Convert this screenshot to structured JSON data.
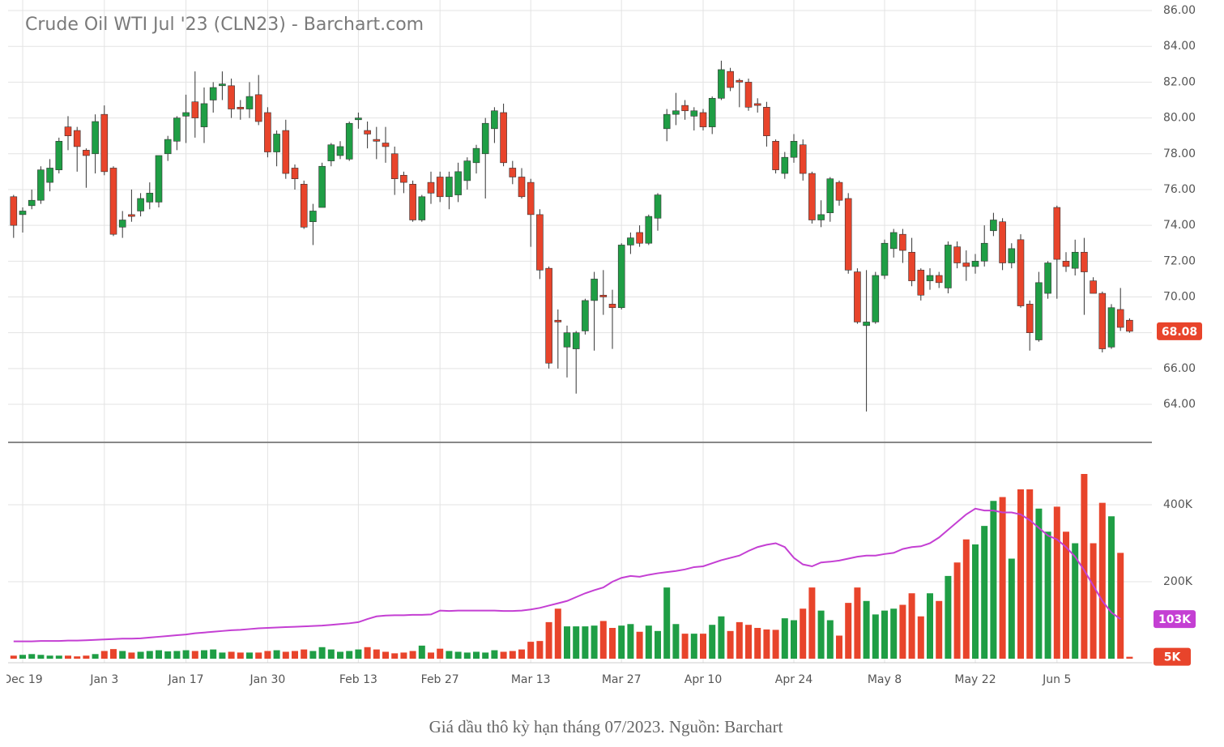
{
  "caption": "Giá dầu thô kỳ hạn tháng 07/2023. Nguồn: Barchart",
  "chart_data": [
    {
      "type": "candlestick",
      "title": "Crude Oil WTI Jul '23 (CLN23) - Barchart.com",
      "categories": [
        null,
        "Dec 19",
        null,
        null,
        null,
        null,
        null,
        null,
        null,
        null,
        "Jan 3",
        null,
        null,
        null,
        null,
        null,
        null,
        null,
        null,
        "Jan 17",
        null,
        null,
        null,
        null,
        null,
        null,
        null,
        null,
        "Jan 30",
        null,
        null,
        null,
        null,
        null,
        null,
        null,
        null,
        null,
        "Feb 13",
        null,
        null,
        null,
        null,
        null,
        null,
        null,
        null,
        "Feb 27",
        null,
        null,
        null,
        null,
        null,
        null,
        null,
        null,
        null,
        "Mar 13",
        null,
        null,
        null,
        null,
        null,
        null,
        null,
        null,
        null,
        "Mar 27",
        null,
        null,
        null,
        null,
        null,
        null,
        null,
        null,
        "Apr 10",
        null,
        null,
        null,
        null,
        null,
        null,
        null,
        null,
        null,
        "Apr 24",
        null,
        null,
        null,
        null,
        null,
        null,
        null,
        null,
        null,
        "May 8",
        null,
        null,
        null,
        null,
        null,
        null,
        null,
        null,
        null,
        "May 22",
        null,
        null,
        null,
        null,
        null,
        null,
        null,
        null,
        "Jun 5",
        null,
        null,
        null,
        null,
        null,
        null,
        null,
        null
      ],
      "open": [
        75.6,
        74.6,
        75.1,
        75.4,
        76.4,
        77.1,
        79.5,
        79.3,
        78.2,
        78.0,
        80.2,
        77.2,
        73.9,
        74.6,
        74.8,
        75.3,
        75.3,
        78.0,
        78.7,
        80.1,
        80.9,
        79.5,
        81.0,
        81.8,
        81.8,
        80.6,
        80.5,
        81.3,
        80.3,
        78.1,
        79.3,
        77.2,
        76.3,
        74.2,
        75.0,
        77.6,
        77.9,
        77.7,
        79.9,
        79.3,
        78.8,
        78.6,
        78.0,
        76.8,
        76.3,
        74.3,
        76.4,
        76.7,
        75.6,
        75.7,
        76.5,
        77.5,
        78.0,
        79.4,
        80.3,
        77.2,
        76.7,
        76.4,
        74.6,
        71.6,
        68.7,
        67.2,
        67.1,
        68.1,
        69.8,
        70.1,
        69.6,
        69.4,
        72.9,
        73.6,
        73.0,
        74.4,
        79.4,
        80.2,
        80.7,
        80.1,
        80.3,
        79.5,
        81.1,
        82.6,
        82.1,
        82.0,
        80.8,
        80.6,
        78.7,
        76.9,
        77.8,
        78.5,
        76.9,
        74.3,
        74.7,
        76.4,
        75.5,
        71.4,
        68.4,
        68.6,
        71.2,
        72.7,
        73.5,
        72.5,
        71.5,
        70.9,
        71.2,
        70.5,
        72.8,
        71.9,
        71.7,
        72.0,
        73.7,
        74.2,
        71.9,
        73.2,
        69.6,
        67.6,
        70.2,
        75.0,
        72.0,
        71.6,
        72.5,
        70.9,
        70.2,
        67.2,
        69.3,
        68.7
      ],
      "high": [
        75.7,
        75.0,
        76.0,
        77.3,
        77.7,
        78.9,
        80.1,
        79.5,
        78.3,
        80.2,
        80.7,
        77.3,
        74.8,
        76.0,
        75.8,
        76.4,
        77.9,
        79.0,
        80.1,
        81.3,
        82.6,
        81.7,
        82.0,
        82.6,
        82.2,
        81.0,
        82.0,
        82.4,
        80.6,
        79.3,
        79.9,
        77.4,
        76.5,
        75.2,
        77.5,
        78.6,
        78.7,
        79.8,
        80.3,
        79.8,
        79.5,
        79.5,
        78.4,
        77.0,
        76.5,
        75.7,
        77.0,
        77.0,
        77.0,
        77.5,
        77.8,
        78.5,
        80.0,
        80.6,
        80.8,
        77.6,
        77.2,
        76.6,
        74.9,
        71.7,
        69.3,
        68.4,
        68.1,
        69.9,
        71.4,
        71.5,
        70.4,
        73.0,
        73.6,
        74.0,
        74.6,
        75.8,
        80.5,
        81.4,
        81.0,
        80.6,
        80.5,
        81.2,
        83.2,
        82.8,
        82.2,
        82.2,
        81.1,
        80.9,
        78.8,
        78.1,
        79.1,
        78.8,
        77.0,
        75.4,
        76.7,
        76.5,
        75.8,
        71.6,
        71.5,
        71.4,
        73.2,
        73.8,
        73.8,
        73.3,
        71.6,
        71.6,
        71.4,
        73.1,
        73.1,
        72.6,
        72.4,
        74.0,
        74.7,
        74.4,
        73.0,
        73.5,
        69.8,
        71.4,
        72.0,
        75.1,
        72.5,
        73.2,
        73.3,
        71.1,
        70.3,
        69.6,
        70.5,
        68.8
      ],
      "low": [
        73.3,
        73.6,
        74.9,
        75.2,
        75.9,
        76.9,
        78.2,
        77.0,
        76.1,
        76.9,
        76.8,
        73.4,
        73.3,
        74.2,
        74.5,
        74.9,
        75.0,
        77.6,
        78.2,
        78.6,
        78.9,
        78.6,
        80.3,
        81.0,
        80.0,
        79.9,
        80.0,
        79.6,
        77.8,
        77.3,
        76.6,
        76.0,
        73.8,
        72.9,
        75.0,
        77.3,
        77.7,
        77.6,
        79.4,
        78.3,
        77.7,
        77.5,
        75.7,
        75.8,
        74.2,
        74.2,
        75.2,
        75.3,
        74.9,
        75.3,
        76.0,
        76.9,
        75.5,
        78.6,
        77.3,
        76.3,
        75.5,
        72.8,
        71.0,
        66.0,
        66.0,
        65.5,
        64.6,
        67.9,
        67.0,
        69.0,
        67.1,
        69.3,
        72.4,
        72.8,
        72.9,
        73.7,
        78.7,
        79.6,
        79.9,
        79.3,
        79.3,
        79.1,
        81.0,
        81.5,
        80.6,
        80.4,
        80.3,
        78.4,
        76.9,
        76.6,
        77.5,
        76.5,
        74.1,
        73.9,
        74.2,
        75.1,
        71.3,
        68.5,
        63.6,
        68.5,
        71.0,
        72.2,
        71.9,
        70.6,
        69.8,
        70.4,
        70.5,
        70.2,
        71.6,
        70.9,
        71.3,
        71.7,
        73.4,
        71.5,
        71.6,
        69.4,
        67.0,
        67.5,
        69.9,
        69.9,
        71.4,
        71.2,
        69.0,
        70.2,
        66.9,
        67.1,
        68.1,
        68.0
      ],
      "close": [
        74.0,
        74.8,
        75.4,
        77.1,
        77.2,
        78.7,
        79.0,
        78.4,
        77.9,
        79.8,
        77.0,
        73.5,
        74.3,
        74.5,
        75.5,
        75.8,
        77.9,
        78.8,
        80.0,
        80.3,
        80.0,
        80.8,
        81.7,
        81.9,
        80.5,
        80.5,
        81.2,
        79.8,
        78.1,
        79.1,
        76.9,
        76.6,
        73.9,
        74.8,
        77.3,
        78.5,
        78.4,
        79.7,
        80.0,
        79.1,
        78.7,
        78.4,
        76.6,
        76.4,
        74.3,
        75.6,
        75.8,
        75.6,
        76.7,
        77.0,
        77.6,
        78.3,
        79.7,
        80.4,
        77.5,
        76.7,
        75.6,
        74.6,
        71.5,
        66.3,
        68.6,
        68.0,
        68.0,
        69.8,
        71.0,
        70.0,
        69.4,
        72.9,
        73.3,
        73.0,
        74.5,
        75.7,
        80.2,
        80.4,
        80.4,
        80.4,
        79.5,
        81.1,
        82.7,
        81.7,
        82.0,
        80.6,
        80.7,
        79.0,
        77.1,
        77.8,
        78.7,
        76.9,
        74.3,
        74.6,
        76.6,
        75.4,
        71.5,
        68.6,
        68.6,
        71.2,
        73.0,
        73.6,
        72.6,
        70.9,
        70.1,
        71.2,
        70.8,
        72.9,
        71.9,
        71.7,
        72.0,
        73.0,
        74.3,
        71.9,
        72.7,
        69.5,
        68.0,
        70.8,
        71.9,
        72.1,
        71.7,
        72.5,
        71.4,
        70.2,
        67.1,
        69.4,
        68.3,
        68.08
      ],
      "up_color": "#1f9e45",
      "down_color": "#e8442b",
      "ylim": [
        61.92,
        86.59
      ],
      "yticks": [
        {
          "value": 64,
          "label": "64.00"
        },
        {
          "value": 66,
          "label": "66.00"
        },
        {
          "value": 68,
          "label": "68.00"
        },
        {
          "value": 70,
          "label": "70.00"
        },
        {
          "value": 72,
          "label": "72.00"
        },
        {
          "value": 74,
          "label": "74.00"
        },
        {
          "value": 76,
          "label": "76.00"
        },
        {
          "value": 78,
          "label": "78.00"
        },
        {
          "value": 80,
          "label": "80.00"
        },
        {
          "value": 82,
          "label": "82.00"
        },
        {
          "value": 84,
          "label": "84.00"
        },
        {
          "value": 86,
          "label": "86.00"
        }
      ],
      "grid": true
    },
    {
      "type": "volume",
      "series": [
        {
          "type": "bar",
          "values": [
            8,
            10,
            12,
            10,
            8,
            8,
            8,
            6,
            8,
            12,
            20,
            25,
            20,
            16,
            18,
            20,
            22,
            19,
            20,
            22,
            20,
            22,
            24,
            16,
            18,
            16,
            16,
            16,
            20,
            22,
            18,
            20,
            24,
            20,
            30,
            24,
            18,
            20,
            24,
            30,
            24,
            18,
            14,
            16,
            20,
            34,
            16,
            26,
            20,
            18,
            16,
            18,
            16,
            22,
            18,
            20,
            24,
            44,
            46,
            95,
            130,
            84,
            84,
            84,
            86,
            98,
            80,
            86,
            90,
            70,
            86,
            72,
            185,
            90,
            65,
            65,
            65,
            88,
            110,
            72,
            95,
            88,
            80,
            76,
            75,
            105,
            100,
            130,
            185,
            125,
            100,
            60,
            145,
            185,
            150,
            115,
            125,
            130,
            140,
            170,
            110,
            170,
            150,
            215,
            250,
            310,
            297,
            345,
            410,
            420,
            260,
            440,
            440,
            390,
            330,
            395,
            330,
            300,
            480,
            300,
            405,
            370,
            275,
            5
          ],
          "value_labels": [
            null,
            null,
            null,
            null,
            null,
            null,
            null,
            null,
            null,
            null,
            null,
            null,
            null,
            null,
            null,
            null,
            null,
            null,
            null,
            null,
            null,
            null,
            null,
            null,
            null,
            null,
            null,
            null,
            null,
            null,
            null,
            null,
            null,
            null,
            null,
            null,
            null,
            null,
            null,
            null,
            null,
            null,
            null,
            null,
            null,
            null,
            null,
            null,
            null,
            null,
            null,
            null,
            null,
            null,
            null,
            null,
            null,
            null,
            null,
            null,
            null,
            null,
            null,
            null,
            null,
            null,
            null,
            null,
            null,
            null,
            null,
            null,
            null,
            null,
            null,
            null,
            null,
            null,
            null,
            null,
            null,
            null,
            null,
            null,
            null,
            null,
            null,
            null,
            null,
            null,
            null,
            null,
            null,
            null,
            null,
            null,
            null,
            null,
            null,
            null,
            null,
            null,
            null,
            null,
            null,
            null,
            null,
            null,
            null,
            null,
            null,
            null,
            null,
            null,
            null,
            null,
            null,
            null,
            null,
            null,
            null,
            null,
            null,
            "5K"
          ]
        },
        {
          "type": "line",
          "color": "#c43fd3",
          "values": [
            45,
            45,
            45,
            46,
            46,
            46,
            47,
            47,
            48,
            49,
            50,
            51,
            52,
            52,
            53,
            55,
            57,
            59,
            61,
            63,
            66,
            68,
            70,
            72,
            74,
            75,
            77,
            79,
            80,
            81,
            82,
            83,
            84,
            85,
            86,
            88,
            90,
            92,
            95,
            103,
            110,
            112,
            113,
            113,
            114,
            114,
            115,
            125,
            124,
            125,
            125,
            125,
            125,
            125,
            124,
            124,
            125,
            128,
            132,
            138,
            144,
            150,
            160,
            170,
            178,
            185,
            200,
            210,
            215,
            213,
            218,
            222,
            225,
            228,
            232,
            238,
            240,
            248,
            256,
            262,
            268,
            280,
            290,
            296,
            300,
            290,
            262,
            245,
            240,
            250,
            252,
            255,
            260,
            265,
            268,
            268,
            272,
            275,
            285,
            290,
            292,
            300,
            315,
            335,
            355,
            375,
            390,
            385,
            385,
            380,
            380,
            375,
            360,
            340,
            320,
            310,
            290,
            265,
            230,
            190,
            150,
            120,
            103,
            null
          ],
          "value_labels": [
            null,
            null,
            null,
            null,
            null,
            null,
            null,
            null,
            null,
            null,
            null,
            null,
            null,
            null,
            null,
            null,
            null,
            null,
            null,
            null,
            null,
            null,
            null,
            null,
            null,
            null,
            null,
            null,
            null,
            null,
            null,
            null,
            null,
            null,
            null,
            null,
            null,
            null,
            null,
            null,
            null,
            null,
            null,
            null,
            null,
            null,
            null,
            null,
            null,
            null,
            null,
            null,
            null,
            null,
            null,
            null,
            null,
            null,
            null,
            null,
            null,
            null,
            null,
            null,
            null,
            null,
            null,
            null,
            null,
            null,
            null,
            null,
            null,
            null,
            null,
            null,
            null,
            null,
            null,
            null,
            null,
            null,
            null,
            null,
            null,
            null,
            null,
            null,
            null,
            null,
            null,
            null,
            null,
            null,
            null,
            null,
            null,
            null,
            null,
            null,
            null,
            null,
            null,
            null,
            null,
            null,
            null,
            null,
            null,
            null,
            null,
            null,
            null,
            null,
            null,
            null,
            null,
            null,
            null,
            null,
            null,
            null,
            "103K",
            null
          ]
        }
      ],
      "ylim": [
        -10.5,
        557.9
      ],
      "yticks": [
        {
          "value": 200,
          "label": "200K"
        },
        {
          "value": 400,
          "label": "400K"
        }
      ],
      "grid": true
    }
  ]
}
